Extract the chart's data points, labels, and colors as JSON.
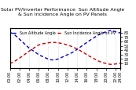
{
  "title": "Solar PV/Inverter Performance  Sun Altitude Angle & Sun Incidence Angle on PV Panels",
  "blue_label": "Sun Altitude Angle",
  "red_label": "Sun Incidence Angle on PV",
  "x_values": [
    0,
    1,
    2,
    3,
    4,
    5,
    6,
    7,
    8,
    9,
    10,
    11,
    12,
    13,
    14,
    15,
    16,
    17,
    18,
    19,
    20,
    21,
    22,
    23
  ],
  "blue_values": [
    80,
    75,
    65,
    55,
    45,
    38,
    30,
    25,
    20,
    18,
    20,
    25,
    30,
    35,
    42,
    50,
    58,
    65,
    72,
    78,
    82,
    85,
    82,
    80
  ],
  "red_values": [
    10,
    15,
    22,
    30,
    38,
    45,
    52,
    55,
    57,
    58,
    57,
    55,
    52,
    48,
    43,
    37,
    30,
    24,
    18,
    13,
    10,
    8,
    9,
    10
  ],
  "blue_color": "#0000cc",
  "red_color": "#cc0000",
  "bg_color": "#ffffff",
  "grid_color": "#bbbbbb",
  "ylim_left": [
    0,
    90
  ],
  "ylim_right": [
    0,
    90
  ],
  "yticks_right": [
    10,
    20,
    30,
    40,
    50,
    60,
    70,
    80
  ],
  "x_tick_labels": [
    "00:00",
    "02:00",
    "04:00",
    "06:00",
    "08:00",
    "10:00",
    "12:00",
    "14:00",
    "16:00",
    "18:00",
    "20:00",
    "22:00",
    "24:00"
  ],
  "x_tick_positions": [
    0,
    2,
    4,
    6,
    8,
    10,
    12,
    14,
    16,
    18,
    20,
    22,
    23
  ],
  "title_fontsize": 4.5,
  "tick_fontsize": 3.5,
  "legend_fontsize": 3.5,
  "linewidth": 1.0
}
